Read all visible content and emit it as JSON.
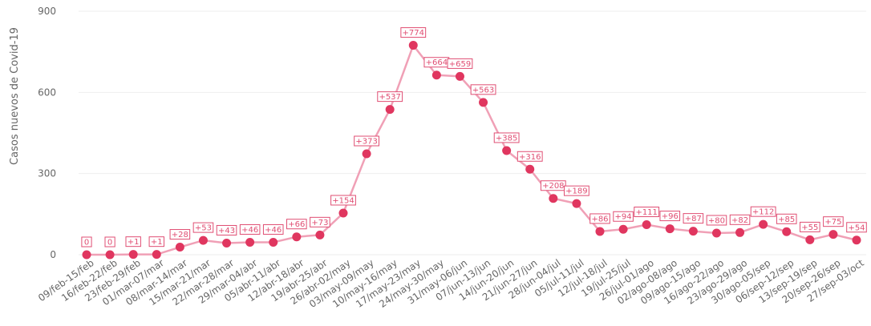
{
  "chart_data": {
    "type": "line",
    "ylabel": "Casos nuevos de Covid-19",
    "ylim": [
      0,
      900
    ],
    "y_ticks": [
      0,
      300,
      600,
      900
    ],
    "grid": true,
    "colors": {
      "line": "#f0a0b6",
      "marker": "#e0365f",
      "label": "#e04e73"
    },
    "categories": [
      "09/feb-15/feb",
      "16/feb-22/feb",
      "23/feb-29/feb",
      "01/mar-07/mar",
      "08/mar-14/mar",
      "15/mar-21/mar",
      "22/mar-28/mar",
      "29/mar-04/abr",
      "05/abr-11/abr",
      "12/abr-18/abr",
      "19/abr-25/abr",
      "26/abr-02/may",
      "03/may-09/may",
      "10/may-16/may",
      "17/may-23/may",
      "24/may-30/may",
      "31/may-06/jun",
      "07/jun-13/jun",
      "14/jun-20/jun",
      "21/jun-27/jun",
      "28/jun-04/jul",
      "05/jul-11/jul",
      "12/jul-18/jul",
      "19/jul-25/jul",
      "26/jul-01/ago",
      "02/ago-08/ago",
      "09/ago-15/ago",
      "16/ago-22/ago",
      "23/ago-29/ago",
      "30/ago-05/sep",
      "06/sep-12/sep",
      "13/sep-19/sep",
      "20/sep-26/sep",
      "27/sep-03/oct"
    ],
    "series": [
      {
        "values": [
          0,
          0,
          1,
          1,
          28,
          53,
          43,
          46,
          46,
          66,
          73,
          154,
          373,
          537,
          774,
          664,
          659,
          563,
          385,
          316,
          208,
          189,
          86,
          94,
          111,
          96,
          87,
          80,
          82,
          112,
          85,
          55,
          75,
          54
        ],
        "labels": [
          "0",
          "0",
          "+1",
          "+1",
          "+28",
          "+53",
          "+43",
          "+46",
          "+46",
          "+66",
          "+73",
          "+154",
          "+373",
          "+537",
          "+774",
          "+664",
          "+659",
          "+563",
          "+385",
          "+316",
          "+208",
          "+189",
          "+86",
          "+94",
          "+111",
          "+96",
          "+87",
          "+80",
          "+82",
          "+112",
          "+85",
          "+55",
          "+75",
          "+54"
        ]
      }
    ]
  }
}
